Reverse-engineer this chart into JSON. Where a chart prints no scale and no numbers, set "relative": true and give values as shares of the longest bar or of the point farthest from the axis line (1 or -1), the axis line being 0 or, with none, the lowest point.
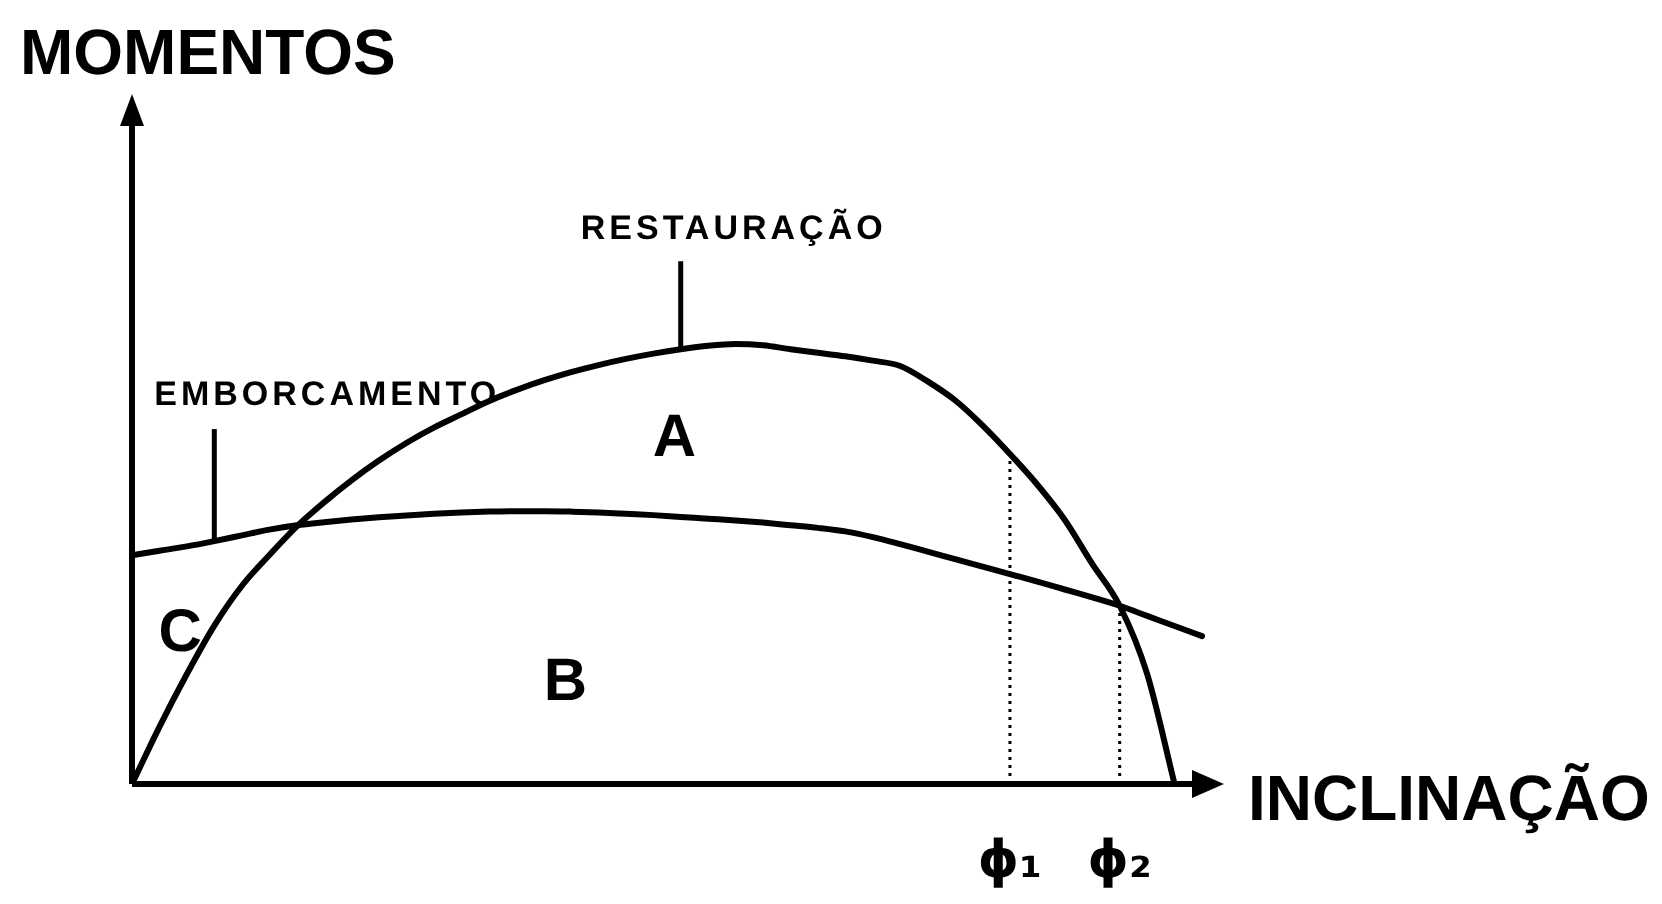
{
  "chart_data": {
    "type": "line",
    "relative": true,
    "xlabel": "INCLINAÇÃO",
    "ylabel": "MOMENTOS",
    "tick_labels": "x",
    "marker": "none",
    "line_style": "solid",
    "categories": [
      null,
      null,
      null,
      null,
      null,
      null,
      null,
      null,
      null,
      null,
      null,
      null,
      null,
      null,
      null,
      null,
      null,
      null,
      null,
      null,
      null,
      null,
      null,
      null,
      null,
      null,
      null,
      null,
      null,
      null,
      null,
      null,
      "ϕ₁",
      null,
      null,
      null,
      "ϕ₂",
      null,
      null,
      null
    ],
    "series": [
      {
        "name": "RESTAURAÇÃO",
        "color": "#000000",
        "values": [
          0,
          0.13,
          0.25,
          0.36,
          0.45,
          0.52,
          0.585,
          0.64,
          0.69,
          0.735,
          0.775,
          0.81,
          0.84,
          0.87,
          0.895,
          0.917,
          0.936,
          0.952,
          0.966,
          0.978,
          0.988,
          0.996,
          1,
          0.997,
          0.988,
          0.98,
          0.972,
          0.962,
          0.95,
          0.915,
          0.872,
          0.815,
          0.75,
          0.68,
          0.6,
          0.5,
          0.405,
          0.25,
          0,
          null
        ]
      },
      {
        "name": "EMBORCAMENTO",
        "color": "#000000",
        "values": [
          0.52,
          0.53,
          0.54,
          0.552,
          0.565,
          0.578,
          0.588,
          0.595,
          0.601,
          0.606,
          0.61,
          0.614,
          0.617,
          0.619,
          0.62,
          0.62,
          0.619,
          0.617,
          0.614,
          0.611,
          0.607,
          0.603,
          0.599,
          0.594,
          0.588,
          0.582,
          0.574,
          0.561,
          0.545,
          0.528,
          0.511,
          0.494,
          0.477,
          0.46,
          0.442,
          0.424,
          0.405,
          0.382,
          0.359,
          0.336
        ]
      }
    ],
    "ref_lines": [
      {
        "axis": "x",
        "value": "ϕ₁",
        "line_style": "dotted"
      },
      {
        "axis": "x",
        "value": "ϕ₂",
        "line_style": "dotted"
      }
    ],
    "annotations": [
      "A",
      "B",
      "C"
    ]
  }
}
